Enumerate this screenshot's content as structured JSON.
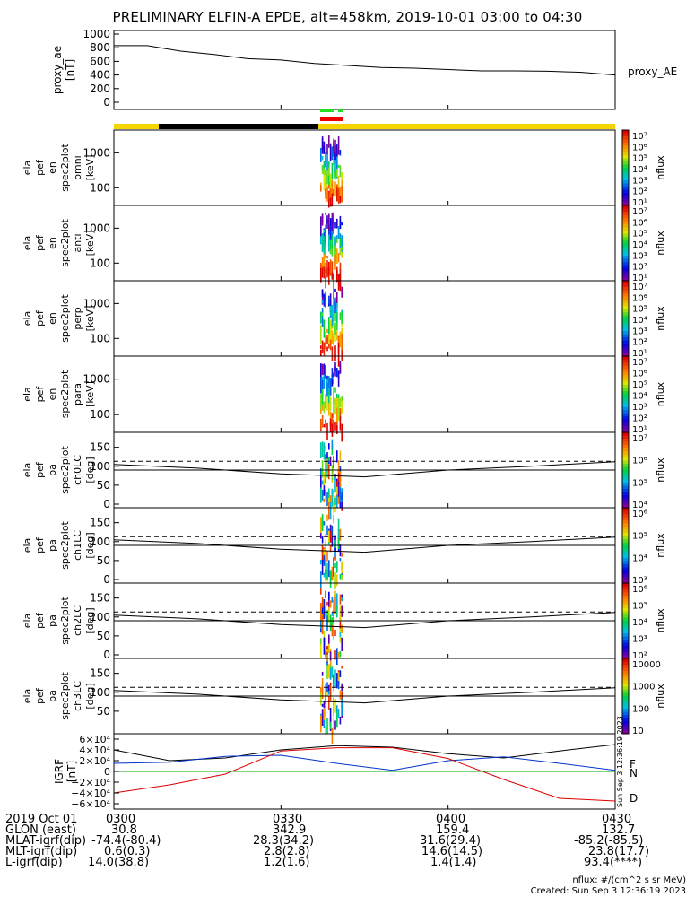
{
  "title": "PRELIMINARY ELFIN-A EPDE, alt=458km, 2019-10-01 03:00 to 04:30",
  "colors": {
    "state_bar_yellow": "#f5d400",
    "state_bar_black": "#000000",
    "sci_green": "#22dd22",
    "sci_red": "#ee0000",
    "bx_black": "#000000",
    "by_blue": "#0033cc",
    "bz_green": "#00aa00",
    "bd_red": "#dd0000"
  },
  "panels": [
    {
      "id": "proxy_ae",
      "ylabel": [
        "proxy_ae",
        "[nT]"
      ],
      "yticks": [
        "1000",
        "800",
        "600",
        "400",
        "200",
        "0"
      ],
      "right_label": "proxy_AE"
    },
    {
      "id": "omni",
      "ylabel": [
        "ela",
        "pef",
        "en",
        "spec2plot",
        "omni",
        "[keV]"
      ],
      "yticks": [
        "1000",
        "100"
      ],
      "cbar_label": "nflux",
      "cbar_ticks": [
        "10⁷",
        "10⁶",
        "10⁵",
        "10⁴",
        "10³",
        "10²",
        "10¹"
      ]
    },
    {
      "id": "anti",
      "ylabel": [
        "ela",
        "pef",
        "en",
        "spec2plot",
        "anti",
        "[keV]"
      ],
      "yticks": [
        "1000",
        "100"
      ],
      "cbar_label": "nflux",
      "cbar_ticks": [
        "10⁷",
        "10⁶",
        "10⁵",
        "10⁴",
        "10³",
        "10²",
        "10¹"
      ]
    },
    {
      "id": "perp",
      "ylabel": [
        "ela",
        "pef",
        "en",
        "spec2plot",
        "perp",
        "[keV]"
      ],
      "yticks": [
        "1000",
        "100"
      ],
      "cbar_label": "nflux",
      "cbar_ticks": [
        "10⁷",
        "10⁶",
        "10⁵",
        "10⁴",
        "10³",
        "10²",
        "10¹"
      ]
    },
    {
      "id": "para",
      "ylabel": [
        "ela",
        "pef",
        "en",
        "spec2plot",
        "para",
        "[keV]"
      ],
      "yticks": [
        "1000",
        "100"
      ],
      "cbar_label": "nflux",
      "cbar_ticks": [
        "10⁷",
        "10⁶",
        "10⁵",
        "10⁴",
        "10³",
        "10²",
        "10¹"
      ]
    },
    {
      "id": "ch0LC",
      "ylabel": [
        "ela",
        "pef",
        "pa",
        "spec2plot",
        "ch0LC",
        "[deg]"
      ],
      "yticks": [
        "150",
        "100",
        "50",
        "0"
      ],
      "cbar_label": "nflux",
      "cbar_ticks": [
        "10⁷",
        "10⁶",
        "10⁵",
        "10⁴"
      ]
    },
    {
      "id": "ch1LC",
      "ylabel": [
        "ela",
        "pef",
        "pa",
        "spec2plot",
        "ch1LC",
        "[deg]"
      ],
      "yticks": [
        "150",
        "100",
        "50",
        "0"
      ],
      "cbar_label": "nflux",
      "cbar_ticks": [
        "10⁶",
        "10⁵",
        "10⁴",
        "10³"
      ]
    },
    {
      "id": "ch2LC",
      "ylabel": [
        "ela",
        "pef",
        "pa",
        "spec2plot",
        "ch2LC",
        "[deg]"
      ],
      "yticks": [
        "150",
        "100",
        "50",
        "0"
      ],
      "cbar_label": "nflux",
      "cbar_ticks": [
        "10⁶",
        "10⁵",
        "10⁴",
        "10³",
        "10²"
      ]
    },
    {
      "id": "ch3LC",
      "ylabel": [
        "ela",
        "pef",
        "pa",
        "spec2plot",
        "ch3LC",
        "[deg]"
      ],
      "yticks": [
        "150",
        "100",
        "50"
      ],
      "cbar_label": "nflux",
      "cbar_ticks": [
        "10000",
        "1000",
        "100",
        "10"
      ]
    },
    {
      "id": "igrf",
      "ylabel": [
        "IGRF",
        "[nT]"
      ],
      "yticks": [
        "6×10⁴",
        "4×10⁴",
        "2×10⁴",
        "0",
        "−2×10⁴",
        "−4×10⁴",
        "−6×10⁴"
      ],
      "legend": [
        "F",
        "N",
        "D"
      ]
    }
  ],
  "chart_data": [
    {
      "type": "line",
      "title": "PRELIMINARY ELFIN-A EPDE, alt=458km, 2019-10-01 03:00 to 04:30",
      "ylabel": "proxy_ae [nT]",
      "ylim": [
        0,
        1000
      ],
      "x": [
        "03:00",
        "03:05",
        "03:10",
        "03:15",
        "03:20",
        "03:25",
        "03:30",
        "03:35",
        "03:40",
        "03:45",
        "03:50",
        "03:55",
        "04:00",
        "04:10",
        "04:20",
        "04:30"
      ],
      "series": [
        {
          "name": "proxy_AE",
          "values": [
            830,
            830,
            750,
            700,
            640,
            620,
            570,
            540,
            510,
            500,
            480,
            460,
            460,
            455,
            440,
            400
          ]
        }
      ]
    },
    {
      "type": "heatmap",
      "ylabel": "[deg]",
      "ylim": [
        0,
        180
      ],
      "x": [
        "03:00",
        "03:15",
        "03:30",
        "03:45",
        "04:00",
        "04:15",
        "04:30"
      ],
      "series": [
        {
          "values": [
            105,
            95,
            80,
            72,
            90,
            100,
            112
          ]
        },
        {
          "values": [
            113,
            113,
            113,
            113,
            113,
            113,
            113
          ]
        },
        {
          "values": [
            90,
            90,
            90,
            90,
            90,
            90,
            90
          ]
        }
      ]
    },
    {
      "type": "line",
      "ylabel": "IGRF [nT]",
      "ylim": [
        -60000,
        60000
      ],
      "x": [
        "03:00",
        "03:10",
        "03:20",
        "03:30",
        "03:40",
        "03:50",
        "04:00",
        "04:10",
        "04:20",
        "04:30"
      ],
      "series": [
        {
          "name": "F",
          "values": [
            40000,
            20000,
            25000,
            40000,
            48000,
            45000,
            33000,
            25000,
            38000,
            50000
          ]
        },
        {
          "name": "N",
          "values": [
            15000,
            17000,
            28000,
            30000,
            15000,
            2000,
            20000,
            27000,
            15000,
            2000
          ]
        },
        {
          "name": "D",
          "values": [
            -40000,
            -25000,
            -5000,
            38000,
            44000,
            44000,
            24000,
            -15000,
            -50000,
            -55000
          ]
        }
      ]
    }
  ],
  "time_axis": {
    "ticks": [
      "0300",
      "0330",
      "0400",
      "0430"
    ]
  },
  "footer": {
    "rows": [
      {
        "label": "2019 Oct 01",
        "v": [
          "0300",
          "0330",
          "0400",
          "0430"
        ]
      },
      {
        "label": "GLON (east)",
        "v": [
          "30.8",
          "342.9",
          "159.4",
          "132.7"
        ]
      },
      {
        "label": "MLAT-igrf(dip)",
        "v": [
          "-74.4(-80.4)",
          "28.3(34.2)",
          "31.6(29.4)",
          "-85.2(-85.5)"
        ]
      },
      {
        "label": "MLT-igrf(dip)",
        "v": [
          "0.6(0.3)",
          "2.8(2.8)",
          "14.6(14.5)",
          "23.8(17.7)"
        ]
      },
      {
        "label": "L-igrf(dip)",
        "v": [
          "14.0(38.8)",
          "1.2(1.6)",
          "1.4(1.4)",
          "93.4(****)"
        ]
      }
    ],
    "note1": "nflux: #/(cm^2 s sr MeV)",
    "note2": "Created: Sun Sep  3 12:36:19 2023",
    "side_note": "Sun Sep  3 12:36:19 2023"
  }
}
